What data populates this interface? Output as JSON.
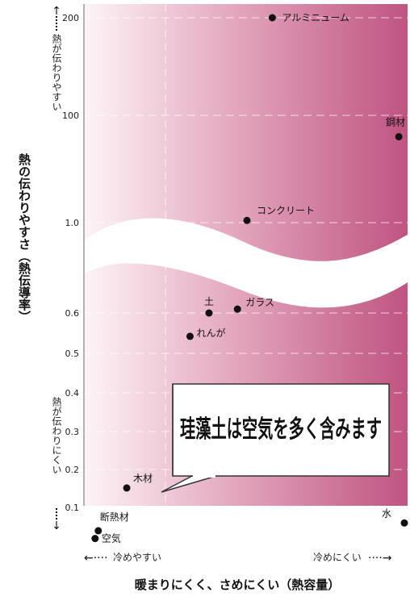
{
  "chart_data": {
    "type": "scatter",
    "xlabel": "暖まりにくく、さめにくい（熱容量）",
    "ylabel": "熱の伝わりやすさ（熱伝導率）",
    "x_left_label": "冷めやすい",
    "x_right_label": "冷めにくい",
    "y_top_label": "熱が伝わりやすい",
    "y_bottom_label": "熱が伝わりにくい",
    "y_ticks_upper": [
      "200",
      "100",
      "1.0"
    ],
    "y_ticks_lower": [
      "0.6",
      "0.5",
      "0.4",
      "0.3",
      "0.2",
      "0.1"
    ],
    "callout_text": "珪藻土は空気を多く含みます",
    "points": [
      {
        "label": "アルミニューム",
        "x": 0.58,
        "y": 200,
        "segment": "upper"
      },
      {
        "label": "鋼材",
        "x": 0.98,
        "y": 40,
        "segment": "upper"
      },
      {
        "label": "コンクリート",
        "x": 0.5,
        "y": 1.1,
        "segment": "upper"
      },
      {
        "label": "土",
        "x": 0.38,
        "y": 0.6,
        "segment": "lower"
      },
      {
        "label": "ガラス",
        "x": 0.47,
        "y": 0.61,
        "segment": "lower"
      },
      {
        "label": "れんが",
        "x": 0.32,
        "y": 0.54,
        "segment": "lower"
      },
      {
        "label": "木材",
        "x": 0.12,
        "y": 0.15,
        "segment": "lower"
      },
      {
        "label": "断熱材",
        "x": 0.03,
        "y": 0.04,
        "segment": "lower"
      },
      {
        "label": "空気",
        "x": 0.02,
        "y": 0.02,
        "segment": "lower"
      },
      {
        "label": "水",
        "x": 1.0,
        "y": 0.06,
        "segment": "lower"
      }
    ],
    "grid": true,
    "colors": {
      "gradient_start": "#ffffff",
      "gradient_end": "#c05680",
      "point": "#111111"
    }
  }
}
